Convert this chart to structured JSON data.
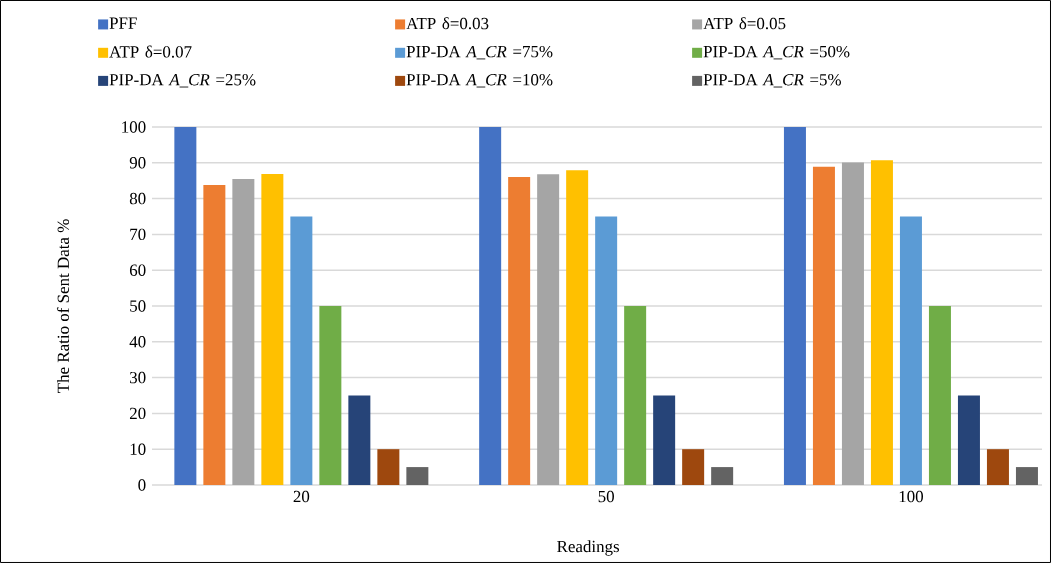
{
  "chart_data": {
    "type": "bar",
    "xlabel": "Readings",
    "ylabel": "The Ratio of Sent Data %",
    "categories": [
      "20",
      "50",
      "100"
    ],
    "series": [
      {
        "name": "PFF",
        "color": "#4472c4",
        "values": [
          100,
          100,
          100
        ]
      },
      {
        "name": "ATP δ=0.03",
        "color": "#ed7d31",
        "values": [
          83.8,
          86.0,
          88.9
        ]
      },
      {
        "name": "ATP δ=0.05",
        "color": "#a5a5a5",
        "values": [
          85.5,
          86.8,
          90.1
        ]
      },
      {
        "name": "ATP δ=0.07",
        "color": "#ffc000",
        "values": [
          86.9,
          87.9,
          90.7
        ]
      },
      {
        "name": "PIP-DA *A_CR*  =75%",
        "color": "#5b9bd5",
        "values": [
          75,
          75,
          75
        ]
      },
      {
        "name": "PIP-DA *A_CR* =50%",
        "color": "#70ad47",
        "values": [
          50,
          50,
          50
        ]
      },
      {
        "name": "PIP-DA *A_CR* =25%",
        "color": "#264478",
        "values": [
          25,
          25,
          25
        ]
      },
      {
        "name": "PIP-DA *A_CR* =10%",
        "color": "#9e480e",
        "values": [
          10,
          10,
          10
        ]
      },
      {
        "name": "PIP-DA *A_CR* =5%",
        "color": "#636363",
        "values": [
          5,
          5,
          5
        ]
      }
    ],
    "ylim": [
      0,
      100
    ],
    "yticks": [
      0,
      10,
      20,
      30,
      40,
      50,
      60,
      70,
      80,
      90,
      100
    ],
    "grid": "y",
    "legend": "top"
  }
}
